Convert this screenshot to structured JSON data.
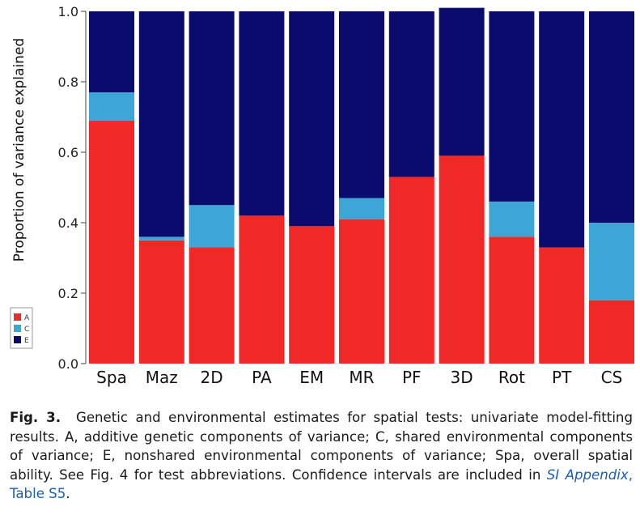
{
  "chart_data": {
    "type": "stacked-bar",
    "ylabel": "Proportion of variance explained",
    "ylim": [
      0,
      1.0
    ],
    "yticks": [
      "0.0",
      "0.2",
      "0.4",
      "0.6",
      "0.8",
      "1.0"
    ],
    "categories": [
      "Spa",
      "Maz",
      "2D",
      "PA",
      "EM",
      "MR",
      "PF",
      "3D",
      "Rot",
      "PT",
      "CS"
    ],
    "series": [
      {
        "name": "A",
        "color": "#f02828",
        "values": [
          0.69,
          0.35,
          0.33,
          0.42,
          0.39,
          0.41,
          0.53,
          0.59,
          0.36,
          0.33,
          0.18
        ]
      },
      {
        "name": "C",
        "color": "#3ca6d6",
        "values": [
          0.08,
          0.01,
          0.12,
          0.0,
          0.0,
          0.06,
          0.0,
          0.0,
          0.1,
          0.0,
          0.22
        ]
      },
      {
        "name": "E",
        "color": "#0b0b6e",
        "values": [
          0.23,
          0.64,
          0.55,
          0.58,
          0.61,
          0.53,
          0.47,
          0.42,
          0.54,
          0.67,
          0.6
        ]
      }
    ],
    "legend": {
      "position": "bottom-left",
      "entries": [
        "A",
        "C",
        "E"
      ]
    }
  },
  "caption": {
    "label": "Fig. 3.",
    "text_before_link": "Genetic and environmental estimates for spatial tests: univariate model-fitting results. A, additive genetic components of variance; C, shared environmental components of variance; E, nonshared environmental components of variance; Spa, overall spatial ability. See Fig. 4 for test abbreviations. Confidence intervals are included in ",
    "link_italic": "SI Appendix",
    "link_plain": ", Table S5",
    "text_after_link": "."
  }
}
